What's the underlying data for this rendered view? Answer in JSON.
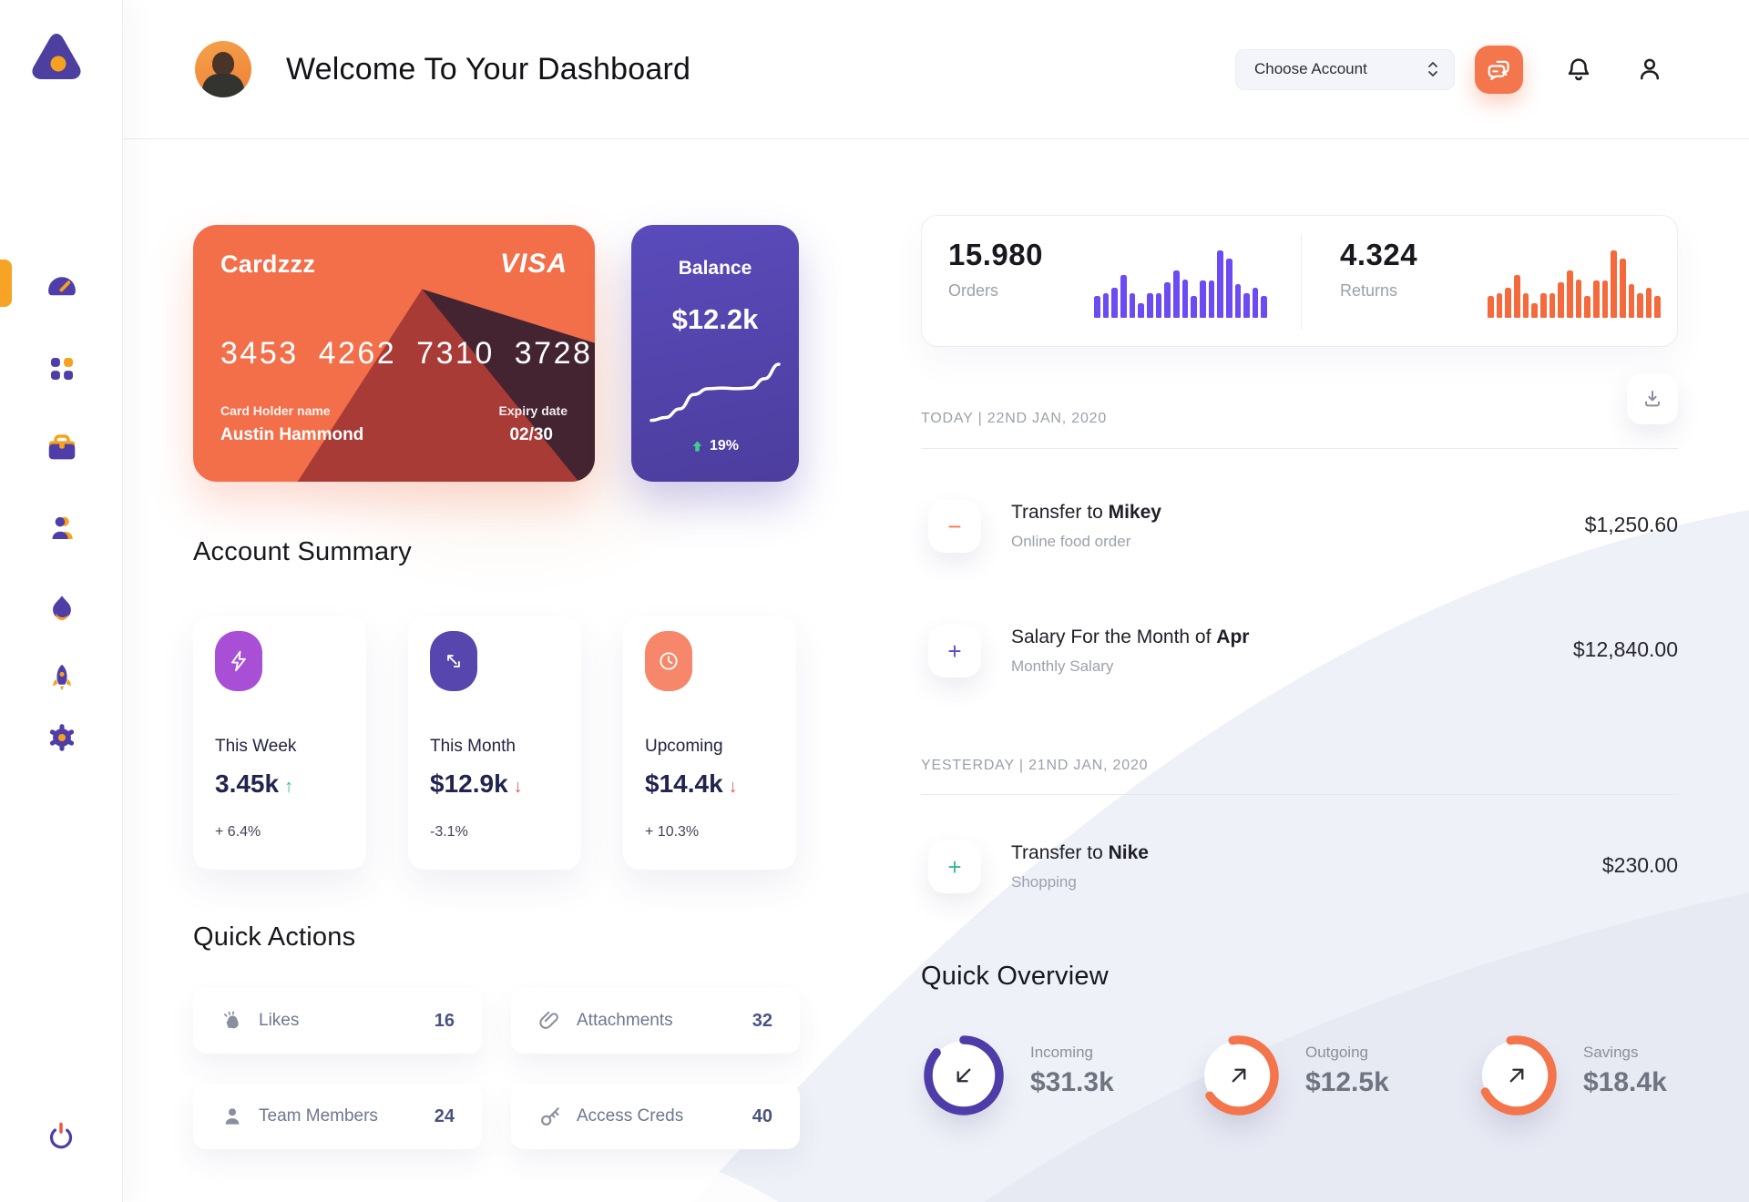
{
  "header": {
    "title": "Welcome To Your Dashboard",
    "account_dropdown": {
      "value": "Choose Account"
    },
    "icons": {
      "chat": "chat-bubbles",
      "notifications": "bell",
      "profile": "user"
    }
  },
  "sidebar": {
    "icons": [
      "dashboard-gauge",
      "apps-grid",
      "briefcase",
      "user",
      "flame",
      "rocket",
      "settings-gear"
    ],
    "power_icon": "power"
  },
  "wallet_card": {
    "name": "Cardzzz",
    "brand": "VISA",
    "number": "3453 4262 7310 3728",
    "holder_label": "Card Holder name",
    "holder": "Austin Hammond",
    "expiry_label": "Expiry date",
    "expiry": "02/30",
    "bg": "#F26F4A"
  },
  "balance_card": {
    "title": "Balance",
    "value": "$12.2k",
    "change": "19%",
    "trend": "up",
    "bg": "#5446B2"
  },
  "stats": {
    "orders": {
      "value": "15.980",
      "label": "Orders"
    },
    "returns": {
      "value": "4.324",
      "label": "Returns"
    }
  },
  "activity": {
    "sections": [
      {
        "date_label": "TODAY | 22ND JAN, 2020",
        "rows": [
          {
            "sign_char": "−",
            "sign_color": "#F4764C",
            "title_prefix": "Transfer to ",
            "title_bold": "Mikey",
            "subtitle": "Online food order",
            "amount": "$1,250.60"
          },
          {
            "sign_char": "+",
            "sign_color": "#5B49C9",
            "title_prefix": "Salary For the Month of ",
            "title_bold": "Apr",
            "subtitle": "Monthly Salary",
            "amount": "$12,840.00"
          }
        ]
      },
      {
        "date_label": "YESTERDAY | 21ND JAN, 2020",
        "rows": [
          {
            "sign_char": "+",
            "sign_color": "#35B99B",
            "title_prefix": "Transfer to ",
            "title_bold": "Nike",
            "subtitle": "Shopping",
            "amount": "$230.00"
          }
        ]
      }
    ]
  },
  "account_summary": {
    "heading": "Account Summary",
    "cards": [
      {
        "icon": "lightning-bolt",
        "icon_bg": "#A84FD6",
        "label": "This Week",
        "value": "3.45k",
        "value_arrow": "↑",
        "arrow_color": "#2EBD85",
        "delta": "+ 6.4%"
      },
      {
        "icon": "arrows-diagonal",
        "icon_bg": "#5646AD",
        "label": "This Month",
        "value": "$12.9k",
        "value_arrow": "↓",
        "arrow_color": "#E25C5C",
        "delta": "-3.1%"
      },
      {
        "icon": "clock",
        "icon_bg": "#F6876A",
        "label": "Upcoming",
        "value": "$14.4k",
        "value_arrow": "↓",
        "arrow_color": "#E25C5C",
        "delta": "+ 10.3%"
      }
    ]
  },
  "quick_actions": {
    "heading": "Quick Actions",
    "items": [
      {
        "icon": "clap",
        "label": "Likes",
        "count": "16"
      },
      {
        "icon": "paperclip",
        "label": "Attachments",
        "count": "32"
      },
      {
        "icon": "member",
        "label": "Team Members",
        "count": "24"
      },
      {
        "icon": "key",
        "label": "Access Creds",
        "count": "40"
      }
    ]
  },
  "quick_overview": {
    "heading": "Quick Overview",
    "items": [
      {
        "label": "Incoming",
        "value": "$31.3k",
        "ring_color": "#4E3CA8",
        "percent": 86,
        "start_deg": -90,
        "arrow": "down-left"
      },
      {
        "label": "Outgoing",
        "value": "$12.5k",
        "ring_color": "#F4744B",
        "percent": 68,
        "start_deg": -100,
        "arrow": "up-right"
      },
      {
        "label": "Savings",
        "value": "$18.4k",
        "ring_color": "#F4744B",
        "percent": 70,
        "start_deg": -100,
        "arrow": "up-right"
      }
    ]
  },
  "chart_data": [
    {
      "type": "bar",
      "name": "orders-mini",
      "color": "#6C4BF2",
      "values": [
        32,
        36,
        45,
        64,
        36,
        22,
        36,
        36,
        53,
        70,
        57,
        32,
        56,
        56,
        100,
        88,
        50,
        36,
        45,
        32
      ]
    },
    {
      "type": "bar",
      "name": "returns-mini",
      "color": "#F46A3D",
      "values": [
        32,
        36,
        45,
        64,
        36,
        22,
        36,
        36,
        53,
        70,
        57,
        32,
        56,
        56,
        100,
        88,
        50,
        36,
        45,
        32
      ]
    },
    {
      "type": "line",
      "name": "balance-trend",
      "color": "#FFFFFF",
      "values": [
        8,
        12,
        24,
        44,
        52,
        53,
        52,
        53,
        66,
        86
      ]
    }
  ]
}
